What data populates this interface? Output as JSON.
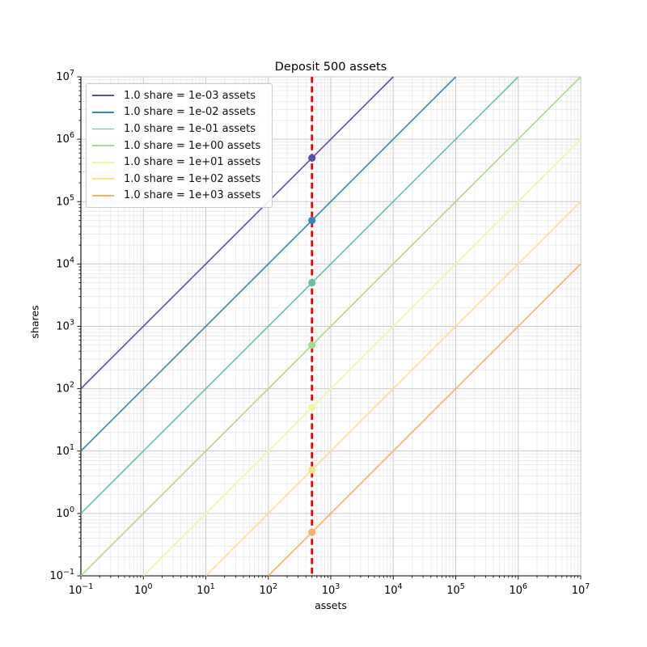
{
  "figure": {
    "background": "#ffffff",
    "text_color": "#000000"
  },
  "chart_data": {
    "type": "line",
    "title": "Deposit 500 assets",
    "xlabel": "assets",
    "ylabel": "shares",
    "xscale": "log",
    "yscale": "log",
    "xlim": [
      0.1,
      10000000
    ],
    "ylim": [
      0.1,
      10000000
    ],
    "x_tick_exponents": [
      -1,
      0,
      1,
      2,
      3,
      4,
      5,
      6,
      7
    ],
    "y_tick_exponents": [
      -1,
      0,
      1,
      2,
      3,
      4,
      5,
      6,
      7
    ],
    "grid": {
      "which": "both",
      "major_color": "#c9c9c9",
      "minor_color": "#e7e7e7"
    },
    "legend_position": "upper left",
    "deposit": {
      "assets": 500,
      "vline_color": "#ee0000",
      "vline_style": "dashed"
    },
    "series": [
      {
        "label": "1.0 share = 1e-03 assets",
        "assets_per_share": 0.001,
        "color": "#5e4fa2",
        "marker": {
          "assets": 500,
          "shares": 500000
        }
      },
      {
        "label": "1.0 share = 1e-02 assets",
        "assets_per_share": 0.01,
        "color": "#3288bd",
        "marker": {
          "assets": 500,
          "shares": 50000
        }
      },
      {
        "label": "1.0 share = 1e-01 assets",
        "assets_per_share": 0.1,
        "color": "#66c2a5",
        "marker": {
          "assets": 500,
          "shares": 5000
        }
      },
      {
        "label": "1.0 share = 1e+00 assets",
        "assets_per_share": 1,
        "color": "#a6dd8d",
        "marker": {
          "assets": 500,
          "shares": 500
        }
      },
      {
        "label": "1.0 share = 1e+01 assets",
        "assets_per_share": 10,
        "color": "#eef8a0",
        "marker": {
          "assets": 500,
          "shares": 50
        }
      },
      {
        "label": "1.0 share = 1e+02 assets",
        "assets_per_share": 100,
        "color": "#fee08b",
        "marker": {
          "assets": 500,
          "shares": 5
        }
      },
      {
        "label": "1.0 share = 1e+03 assets",
        "assets_per_share": 1000,
        "color": "#fdae61",
        "marker": {
          "assets": 500,
          "shares": 0.5
        }
      }
    ],
    "axes_style": {
      "left_bottom_spine_color": "#000000",
      "top_right_spine_color": "#c9c9c9",
      "line_width": 1.6,
      "marker_radius": 4.6
    }
  }
}
